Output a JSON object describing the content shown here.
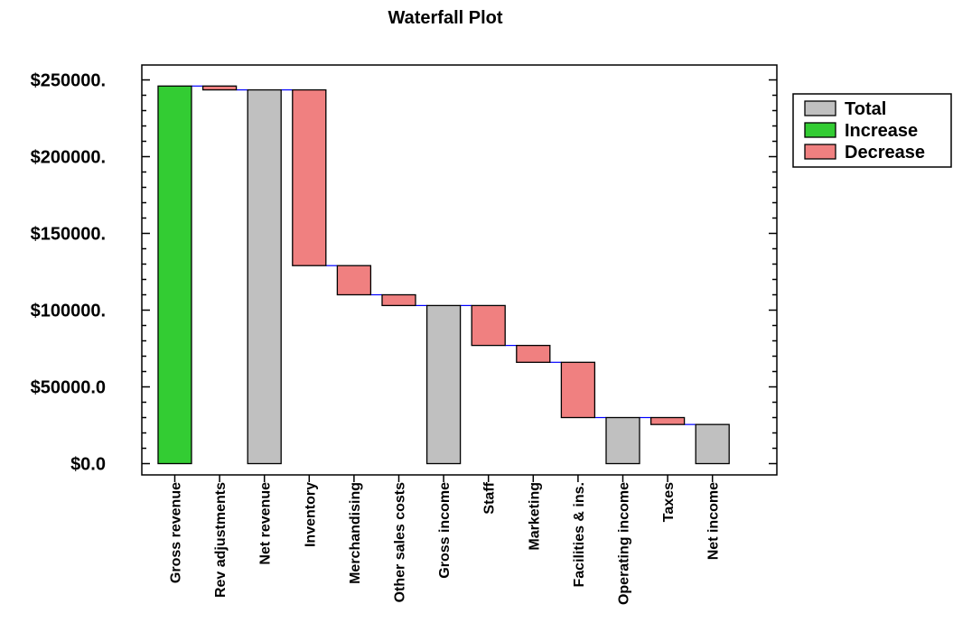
{
  "chart_data": {
    "type": "waterfall",
    "title": "Waterfall Plot",
    "xlabel": "",
    "ylabel": "",
    "ylim": [
      0,
      260000
    ],
    "y_ticks": [
      0,
      50000,
      100000,
      150000,
      200000,
      250000
    ],
    "y_tick_labels": [
      "$0.0",
      "$50000.0",
      "$100000.",
      "$150000.",
      "$200000.",
      "$250000."
    ],
    "categories": [
      "Gross revenue",
      "Rev adjustments",
      "Net revenue",
      "Inventory",
      "Merchandising",
      "Other sales costs",
      "Gross income",
      "Staff",
      "Marketing",
      "Facilities & ins.",
      "Operating income",
      "Taxes",
      "Net income"
    ],
    "bars": [
      {
        "kind": "increase",
        "start": 0,
        "end": 246000
      },
      {
        "kind": "decrease",
        "start": 246000,
        "end": 243500
      },
      {
        "kind": "total",
        "start": 0,
        "end": 243500
      },
      {
        "kind": "decrease",
        "start": 243500,
        "end": 129000
      },
      {
        "kind": "decrease",
        "start": 129000,
        "end": 110000
      },
      {
        "kind": "decrease",
        "start": 110000,
        "end": 103000
      },
      {
        "kind": "total",
        "start": 0,
        "end": 103000
      },
      {
        "kind": "decrease",
        "start": 103000,
        "end": 77000
      },
      {
        "kind": "decrease",
        "start": 77000,
        "end": 66000
      },
      {
        "kind": "decrease",
        "start": 66000,
        "end": 30000
      },
      {
        "kind": "total",
        "start": 0,
        "end": 30000
      },
      {
        "kind": "decrease",
        "start": 30000,
        "end": 25500
      },
      {
        "kind": "total",
        "start": 0,
        "end": 25500
      }
    ],
    "legend": {
      "placement": "top-right",
      "entries": [
        {
          "kind": "total",
          "label": "Total"
        },
        {
          "kind": "increase",
          "label": "Increase"
        },
        {
          "kind": "decrease",
          "label": "Decrease"
        }
      ]
    },
    "colors": {
      "total": "#c0c0c0",
      "increase": "#33cc33",
      "decrease": "#f08080",
      "connector": "#0000ff"
    },
    "grid": false
  }
}
